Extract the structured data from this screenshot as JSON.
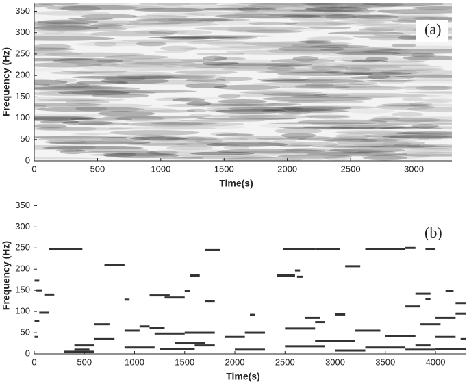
{
  "chart_data": [
    {
      "type": "spectrogram",
      "annotation": "(a)",
      "x_label": "Time(s)",
      "y_label": "Frequency (Hz)",
      "xlim": [
        0,
        3300
      ],
      "ylim": [
        0,
        370
      ],
      "xticks": [
        0,
        500,
        1000,
        1500,
        2000,
        2500,
        3000
      ],
      "yticks": [
        0,
        50,
        100,
        150,
        200,
        250,
        300,
        350
      ]
    },
    {
      "type": "segments",
      "annotation": "(b)",
      "x_label": "Time(s)",
      "y_label": "Frequency (Hz)",
      "xlim": [
        0,
        4300
      ],
      "ylim": [
        0,
        370
      ],
      "color": "#333333",
      "xticks": [
        0,
        500,
        1000,
        1500,
        2000,
        2500,
        3000,
        3500,
        4000
      ],
      "yticks": [
        0,
        50,
        100,
        150,
        200,
        250,
        300,
        350
      ],
      "x_start": [
        150,
        2480,
        2800,
        3300,
        3700,
        3900,
        1700,
        700,
        2420,
        3100,
        2600,
        2620,
        0,
        20,
        100,
        900,
        1300,
        1150,
        1550,
        1500,
        1700,
        3800,
        3900,
        4100,
        4200,
        3700,
        50,
        2150,
        2700,
        2800,
        3000,
        3850,
        4000,
        4200,
        0,
        600,
        1050,
        900,
        1150,
        0,
        400,
        600,
        1200,
        1500,
        1900,
        2100,
        2500,
        2800,
        3200,
        3500,
        3800,
        4000,
        4250,
        400,
        900,
        1250,
        1600,
        2000,
        2500,
        3000,
        3300,
        3700,
        4000,
        1400,
        300
      ],
      "x_end": [
        480,
        2800,
        3050,
        3700,
        3800,
        4000,
        1850,
        900,
        2600,
        3250,
        2650,
        2680,
        50,
        80,
        200,
        950,
        1500,
        1350,
        1650,
        1550,
        1800,
        3950,
        3950,
        4180,
        4300,
        3850,
        150,
        2200,
        2850,
        2900,
        3100,
        4050,
        4200,
        4300,
        50,
        750,
        1150,
        1050,
        1300,
        40,
        600,
        800,
        1500,
        1800,
        2100,
        2300,
        2800,
        3200,
        3450,
        3800,
        3950,
        4200,
        4300,
        550,
        1200,
        1600,
        1800,
        2300,
        2900,
        3300,
        3700,
        4000,
        4300,
        1700,
        600
      ],
      "values": [
        248,
        248,
        248,
        248,
        250,
        248,
        245,
        210,
        185,
        207,
        197,
        182,
        173,
        150,
        140,
        128,
        133,
        138,
        185,
        148,
        125,
        142,
        130,
        148,
        120,
        112,
        97,
        92,
        85,
        75,
        93,
        70,
        85,
        95,
        78,
        70,
        65,
        55,
        62,
        40,
        20,
        35,
        48,
        50,
        40,
        50,
        60,
        30,
        55,
        42,
        20,
        40,
        35,
        10,
        15,
        12,
        20,
        10,
        18,
        8,
        15,
        10,
        12,
        25,
        5
      ]
    }
  ]
}
